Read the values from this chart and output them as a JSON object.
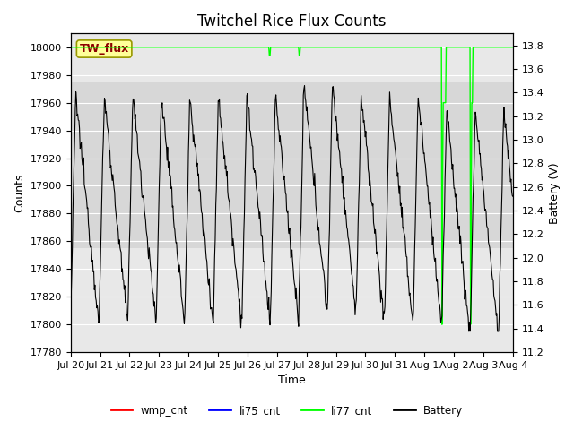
{
  "title": "Twitchel Rice Flux Counts",
  "xlabel": "Time",
  "ylabel_left": "Counts",
  "ylabel_right": "Battery (V)",
  "ylim_left": [
    17780,
    18010
  ],
  "ylim_right": [
    11.2,
    13.9
  ],
  "yticks_left": [
    17780,
    17800,
    17820,
    17840,
    17860,
    17880,
    17900,
    17920,
    17940,
    17960,
    17980,
    18000
  ],
  "yticks_right": [
    11.2,
    11.4,
    11.6,
    11.8,
    12.0,
    12.2,
    12.4,
    12.6,
    12.8,
    13.0,
    13.2,
    13.4,
    13.6,
    13.8
  ],
  "xtick_labels": [
    "Jul 20",
    "Jul 21",
    "Jul 22",
    "Jul 23",
    "Jul 24",
    "Jul 25",
    "Jul 26",
    "Jul 27",
    "Jul 28",
    "Jul 29",
    "Jul 30",
    "Jul 31",
    "Aug 1",
    "Aug 2",
    "Aug 3",
    "Aug 4"
  ],
  "battery_color": "#000000",
  "li77_color": "#00FF00",
  "wmp_color": "#FF0000",
  "li75_color": "#0000FF",
  "plot_bg_color": "#E8E8E8",
  "shaded_band_color": "#D0D0D0",
  "annotation_label": "TW_flux",
  "annotation_color": "#8B0000",
  "annotation_bg": "#FFFF99",
  "title_fontsize": 12,
  "axis_fontsize": 9,
  "tick_fontsize": 8,
  "n_days": 15.5,
  "samples_per_day": 48,
  "battery_min": 11.4,
  "battery_max": 13.45,
  "count_min": 17780,
  "count_max": 18010,
  "volt_min": 11.2,
  "volt_max": 13.9
}
